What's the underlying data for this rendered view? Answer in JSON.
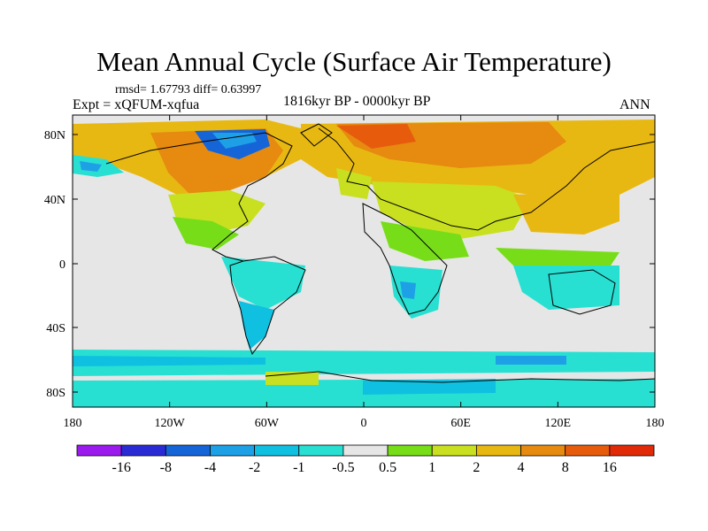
{
  "title": "Mean Annual Cycle (Surface Air Temperature)",
  "stats": "rmsd= 1.67793 diff= 0.63997",
  "expt": "Expt = xQFUM-xqfua",
  "period": "1816kyr BP - 0000kyr BP",
  "season": "ANN",
  "lat_labels": [
    "80N",
    "40N",
    "0",
    "40S",
    "80S"
  ],
  "lon_labels": [
    "180",
    "120W",
    "60W",
    "0",
    "60E",
    "120E",
    "180"
  ],
  "colorbar": {
    "labels": [
      "-16",
      "-8",
      "-4",
      "-2",
      "-1",
      "-0.5",
      "0.5",
      "1",
      "2",
      "4",
      "8",
      "16"
    ],
    "colors": [
      "#9b1bef",
      "#2b2bd6",
      "#1565d8",
      "#1ea0e6",
      "#10c0e0",
      "#28e0d2",
      "#e6e6e6",
      "#77dd18",
      "#c8e020",
      "#e8b812",
      "#e68a10",
      "#e65c0c",
      "#e02a08"
    ]
  },
  "colors": {
    "land_background": "#e6e6e6",
    "warm_orange": "#e68a10",
    "warm_yellow": "#e8b812",
    "green": "#77dd18",
    "yellowgreen": "#c8e020",
    "cyan": "#28e0d2",
    "cyan2": "#10c0e0",
    "blue": "#1ea0e6",
    "deep_blue": "#1565d8",
    "red": "#e65c0c"
  }
}
